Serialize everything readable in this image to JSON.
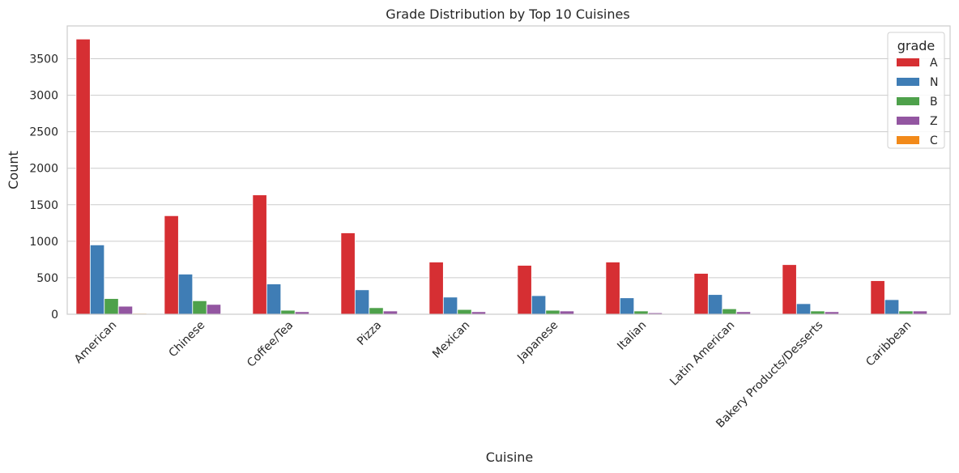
{
  "chart_data": {
    "type": "bar",
    "title": "Grade Distribution by Top 10 Cuisines",
    "xlabel": "Cuisine",
    "ylabel": "Count",
    "ylim": [
      0,
      3950
    ],
    "yticks": [
      0,
      500,
      1000,
      1500,
      2000,
      2500,
      3000,
      3500
    ],
    "grid": true,
    "legend": {
      "title": "grade",
      "placement": "top-right"
    },
    "categories": [
      "American",
      "Chinese",
      "Coffee/Tea",
      "Pizza",
      "Mexican",
      "Japanese",
      "Italian",
      "Latin American",
      "Bakery Products/Desserts",
      "Caribbean"
    ],
    "series": [
      {
        "name": "A",
        "color": "#d62f33",
        "values": [
          3770,
          1350,
          1635,
          1115,
          715,
          670,
          715,
          560,
          680,
          460
        ]
      },
      {
        "name": "N",
        "color": "#3f7db5",
        "values": [
          950,
          550,
          415,
          335,
          235,
          255,
          225,
          270,
          145,
          200
        ]
      },
      {
        "name": "B",
        "color": "#4ea14b",
        "values": [
          215,
          185,
          55,
          90,
          65,
          55,
          45,
          75,
          45,
          45
        ]
      },
      {
        "name": "Z",
        "color": "#9356a1",
        "values": [
          110,
          135,
          35,
          45,
          35,
          45,
          20,
          35,
          35,
          45
        ]
      },
      {
        "name": "C",
        "color": "#f28a1a",
        "values": [
          12,
          10,
          6,
          6,
          6,
          5,
          5,
          6,
          6,
          5
        ]
      }
    ]
  }
}
